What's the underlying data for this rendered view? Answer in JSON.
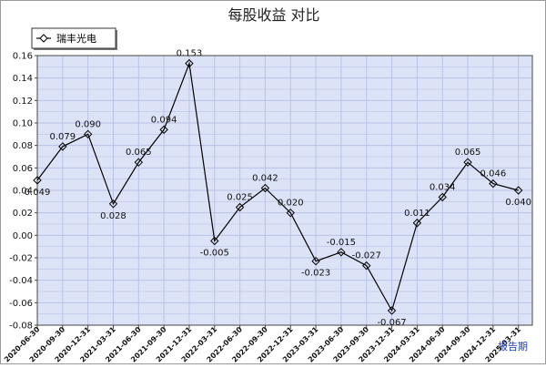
{
  "chart_data": {
    "type": "line",
    "title": "每股收益  对比",
    "categories": [
      "2020-06-30",
      "2020-09-30",
      "2020-12-31",
      "2021-03-31",
      "2021-06-30",
      "2021-09-30",
      "2021-12-31",
      "2022-03-31",
      "2022-06-30",
      "2022-09-30",
      "2022-12-31",
      "2023-03-31",
      "2023-06-30",
      "2023-09-30",
      "2023-12-31",
      "2024-03-31",
      "2024-06-30",
      "2024-09-30",
      "2024-12-31",
      "2025-03-31"
    ],
    "series": [
      {
        "name": "瑞丰光电",
        "values": [
          0.049,
          0.079,
          0.09,
          0.028,
          0.065,
          0.094,
          0.153,
          -0.005,
          0.025,
          0.042,
          0.02,
          -0.023,
          -0.015,
          -0.027,
          -0.067,
          0.011,
          0.034,
          0.065,
          0.046,
          0.04
        ],
        "labels": [
          "0.049",
          "0.079",
          "0.090",
          "0.028",
          "0.065",
          "0.094",
          "0.153",
          "-0.005",
          "0.025",
          "0.042",
          "0.020",
          "-0.023",
          "-0.015",
          "-0.027",
          "-0.067",
          "0.011",
          "0.034",
          "0.065",
          "0.046",
          "0.040"
        ]
      }
    ],
    "yticks": [
      -0.08,
      -0.06,
      -0.04,
      -0.02,
      0.0,
      0.02,
      0.04,
      0.06,
      0.08,
      0.1,
      0.12,
      0.14,
      0.16
    ],
    "ytick_labels": [
      "-0.08",
      "-0.06",
      "-0.04",
      "-0.02",
      "0.00",
      "0.02",
      "0.04",
      "0.06",
      "0.08",
      "0.10",
      "0.12",
      "0.14",
      "0.16"
    ],
    "ylim": [
      -0.08,
      0.16
    ],
    "legend": "top-left",
    "grid": true,
    "footer_label": "报告期",
    "colors": {
      "plot_bg": "#dde3f7",
      "grid": "#b8c2e6",
      "line": "#000000",
      "frame": "#444444",
      "footer": "#1f3db5"
    }
  }
}
